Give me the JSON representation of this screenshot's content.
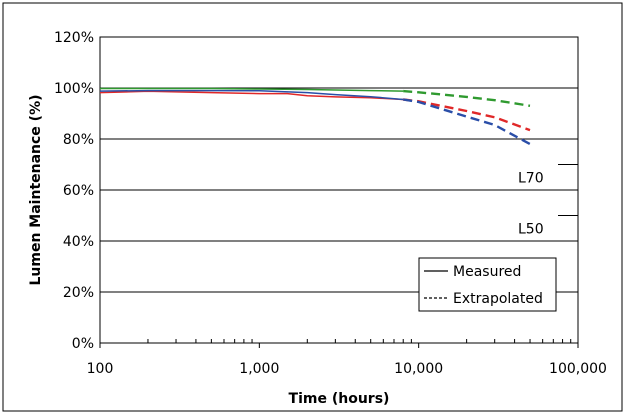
{
  "chart_data": {
    "type": "line",
    "title": "",
    "xlabel": "Time (hours)",
    "ylabel": "Lumen Maintenance (%)",
    "x_scale": "log",
    "xlim": [
      100,
      100000
    ],
    "ylim": [
      0,
      120
    ],
    "x_ticks": [
      100,
      1000,
      10000,
      100000
    ],
    "x_tick_labels": [
      "100",
      "1,000",
      "10,000",
      "100,000"
    ],
    "y_ticks": [
      0,
      20,
      40,
      60,
      80,
      100,
      120
    ],
    "y_tick_labels": [
      "0%",
      "20%",
      "40%",
      "60%",
      "80%",
      "100%",
      "120%"
    ],
    "grid": "horizontal",
    "legend": {
      "position": "bottom-right",
      "entries": [
        {
          "label": "Measured",
          "style": "solid"
        },
        {
          "label": "Extrapolated",
          "style": "dashed"
        }
      ]
    },
    "annotations": [
      {
        "text": "L70",
        "y": 70
      },
      {
        "text": "L50",
        "y": 50
      }
    ],
    "series": [
      {
        "color": "#2f9a2f",
        "measured": {
          "x": [
            100,
            200,
            500,
            1000,
            2000,
            5000,
            8000
          ],
          "y": [
            99.8,
            99.8,
            99.8,
            99.6,
            99.4,
            99.0,
            98.8
          ]
        },
        "extrapolated": {
          "x": [
            8000,
            10000,
            20000,
            30000,
            50000
          ],
          "y": [
            98.8,
            98.3,
            96.5,
            95.2,
            93.0
          ]
        }
      },
      {
        "color": "#e02828",
        "measured": {
          "x": [
            100,
            200,
            500,
            1000,
            1500,
            2000,
            3000,
            5000,
            8000
          ],
          "y": [
            98.2,
            98.7,
            98.2,
            97.8,
            97.8,
            97.0,
            96.5,
            96.2,
            95.5
          ]
        },
        "extrapolated": {
          "x": [
            8000,
            10000,
            20000,
            30000,
            50000
          ],
          "y": [
            95.5,
            94.8,
            91.0,
            88.5,
            83.5
          ]
        }
      },
      {
        "color": "#2a4ea8",
        "measured": {
          "x": [
            100,
            200,
            500,
            1000,
            2000,
            3000,
            5000,
            8000
          ],
          "y": [
            98.8,
            99.0,
            99.0,
            98.9,
            98.2,
            97.4,
            96.6,
            95.5
          ]
        },
        "extrapolated": {
          "x": [
            8000,
            10000,
            20000,
            30000,
            50000
          ],
          "y": [
            95.5,
            94.5,
            88.8,
            85.5,
            78.0
          ]
        }
      }
    ]
  }
}
